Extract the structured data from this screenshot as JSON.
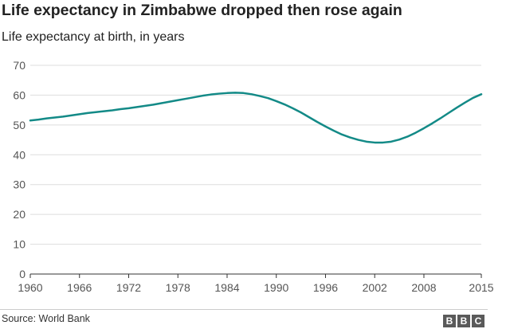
{
  "header": {
    "title": "Life expectancy in Zimbabwe dropped then rose again",
    "subtitle": "Life expectancy at birth, in years"
  },
  "footer": {
    "source": "Source: World Bank",
    "logo_letters": [
      "B",
      "B",
      "C"
    ]
  },
  "colors": {
    "line": "#138a87",
    "grid": "#dddddd",
    "axis": "#333333"
  },
  "chart_data": {
    "type": "line",
    "title": "Life expectancy in Zimbabwe dropped then rose again",
    "subtitle": "Life expectancy at birth, in years",
    "xlabel": "",
    "ylabel": "",
    "xlim": [
      1960,
      2015
    ],
    "ylim": [
      0,
      70
    ],
    "x_ticks": [
      1960,
      1966,
      1972,
      1978,
      1984,
      1990,
      1996,
      2002,
      2008,
      2015
    ],
    "y_ticks": [
      0,
      10,
      20,
      30,
      40,
      50,
      60,
      70
    ],
    "grid": true,
    "legend": "none",
    "series": [
      {
        "x": [
          1960,
          1961,
          1962,
          1963,
          1964,
          1965,
          1966,
          1967,
          1968,
          1969,
          1970,
          1971,
          1972,
          1973,
          1974,
          1975,
          1976,
          1977,
          1978,
          1979,
          1980,
          1981,
          1982,
          1983,
          1984,
          1985,
          1986,
          1987,
          1988,
          1989,
          1990,
          1991,
          1992,
          1993,
          1994,
          1995,
          1996,
          1997,
          1998,
          1999,
          2000,
          2001,
          2002,
          2003,
          2004,
          2005,
          2006,
          2007,
          2008,
          2009,
          2010,
          2011,
          2012,
          2013,
          2014,
          2015
        ],
        "values": [
          51.5,
          51.8,
          52.2,
          52.5,
          52.8,
          53.2,
          53.6,
          54.0,
          54.3,
          54.6,
          54.9,
          55.3,
          55.6,
          56.0,
          56.4,
          56.8,
          57.3,
          57.8,
          58.3,
          58.8,
          59.3,
          59.8,
          60.2,
          60.5,
          60.7,
          60.8,
          60.7,
          60.3,
          59.7,
          59.0,
          58.0,
          56.9,
          55.6,
          54.2,
          52.6,
          51.0,
          49.5,
          48.1,
          46.8,
          45.8,
          45.0,
          44.4,
          44.1,
          44.1,
          44.4,
          45.1,
          46.1,
          47.4,
          48.9,
          50.5,
          52.2,
          54.0,
          55.8,
          57.5,
          59.1,
          60.3
        ]
      }
    ]
  }
}
